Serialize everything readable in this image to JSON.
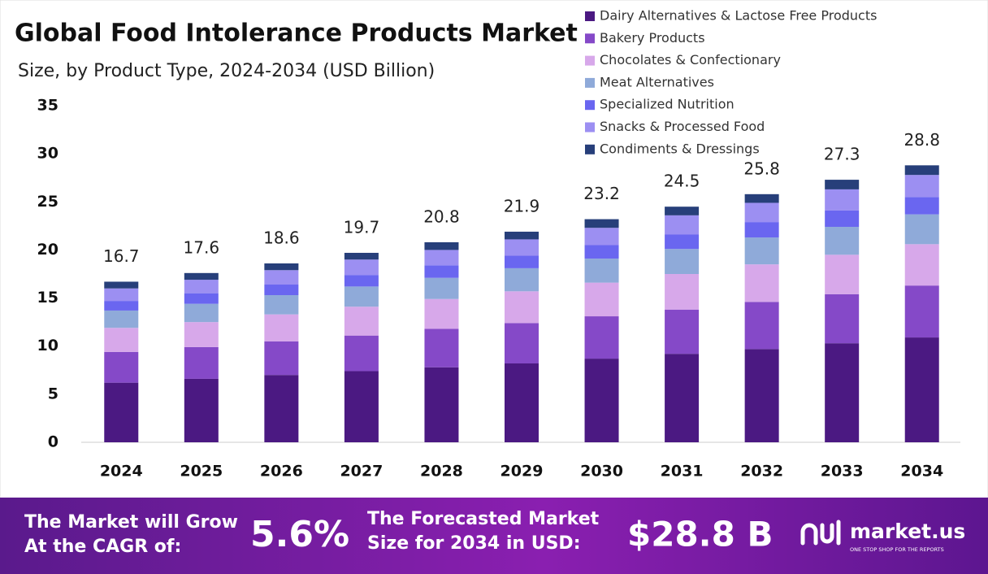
{
  "chart_data": {
    "type": "stacked_bar",
    "title": "Global Food Intolerance Products Market",
    "subtitle": "Size, by Product Type, 2024-2034 (USD Billion)",
    "categories": [
      "2024",
      "2025",
      "2026",
      "2027",
      "2028",
      "2029",
      "2030",
      "2031",
      "2032",
      "2033",
      "2034"
    ],
    "series": [
      {
        "name": "Dairy Alternatives & Lactose Free Products",
        "color": "#4b1982",
        "values": [
          6.2,
          6.6,
          7.0,
          7.4,
          7.8,
          8.2,
          8.7,
          9.2,
          9.7,
          10.3,
          10.9
        ]
      },
      {
        "name": "Bakery Products",
        "color": "#8549c8",
        "values": [
          3.2,
          3.3,
          3.5,
          3.7,
          4.0,
          4.2,
          4.4,
          4.6,
          4.9,
          5.1,
          5.4
        ]
      },
      {
        "name": "Chocolates & Confectionary",
        "color": "#d7a8ea",
        "values": [
          2.5,
          2.6,
          2.8,
          3.0,
          3.1,
          3.3,
          3.5,
          3.7,
          3.9,
          4.1,
          4.3
        ]
      },
      {
        "name": "Meat Alternatives",
        "color": "#8faad9",
        "values": [
          1.8,
          1.9,
          2.0,
          2.1,
          2.2,
          2.4,
          2.5,
          2.6,
          2.8,
          2.9,
          3.1
        ]
      },
      {
        "name": "Specialized Nutrition",
        "color": "#6a66f0",
        "values": [
          1.0,
          1.1,
          1.1,
          1.2,
          1.3,
          1.3,
          1.4,
          1.5,
          1.6,
          1.7,
          1.8
        ]
      },
      {
        "name": "Snacks & Processed Food",
        "color": "#9c8ff2",
        "values": [
          1.3,
          1.4,
          1.5,
          1.6,
          1.6,
          1.7,
          1.8,
          2.0,
          2.0,
          2.2,
          2.3
        ]
      },
      {
        "name": "Condiments & Dressings",
        "color": "#273f7a",
        "values": [
          0.7,
          0.7,
          0.7,
          0.7,
          0.8,
          0.8,
          0.9,
          0.9,
          0.9,
          1.0,
          1.0
        ]
      }
    ],
    "totals": [
      16.7,
      17.6,
      18.6,
      19.7,
      20.8,
      21.9,
      23.2,
      24.5,
      25.8,
      27.3,
      28.8
    ],
    "ylim": [
      0,
      35
    ],
    "yticks": [
      0,
      5,
      10,
      15,
      20,
      25,
      30,
      35
    ],
    "grid": false,
    "legend": "top-right"
  },
  "banner": {
    "cagr_text": [
      "The Market will Grow",
      "At the CAGR of:"
    ],
    "cagr_value": "5.6%",
    "size_text": [
      "The Forecasted Market",
      "Size for 2034 in USD:"
    ],
    "size_value": "$28.8 B",
    "brand": "market.us",
    "tagline": "ONE STOP SHOP FOR THE REPORTS"
  }
}
